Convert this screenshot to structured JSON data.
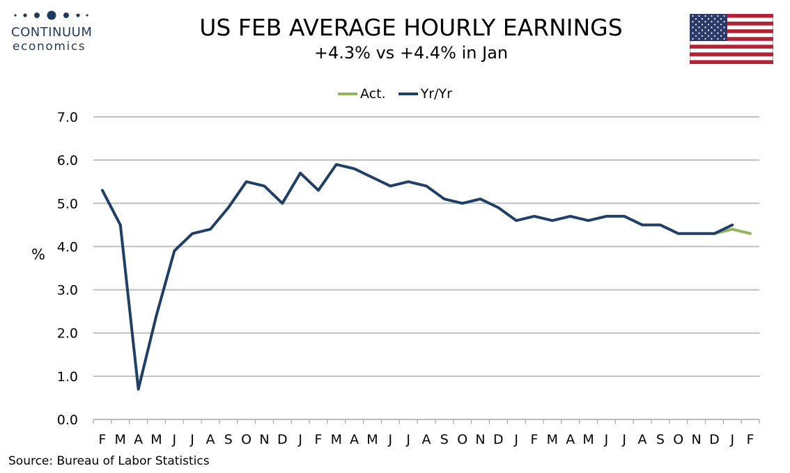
{
  "header": {
    "logo_name": "CONTINUUM",
    "logo_sub": "economics",
    "title": "US FEB AVERAGE HOURLY EARNINGS",
    "subtitle": "+4.3% vs +4.4% in Jan"
  },
  "flag_icon": "us-flag-icon",
  "source": "Source: Bureau of Labor Statistics",
  "colors": {
    "actual": "#92b55a",
    "yoy": "#1f3f66",
    "grid": "#bfbfbf",
    "logo": "#1f3a5f"
  },
  "chart_data": {
    "type": "line",
    "ylabel": "%",
    "ylim": [
      0,
      7
    ],
    "yticks": [
      "0.0",
      "1.0",
      "2.0",
      "3.0",
      "4.0",
      "5.0",
      "6.0",
      "7.0"
    ],
    "grid": true,
    "legend_position": "top-center",
    "categories": [
      "F",
      "M",
      "A",
      "M",
      "J",
      "J",
      "A",
      "S",
      "O",
      "N",
      "D",
      "J",
      "F",
      "M",
      "A",
      "M",
      "J",
      "J",
      "A",
      "S",
      "O",
      "N",
      "D",
      "J",
      "F",
      "M",
      "A",
      "M",
      "J",
      "J",
      "A",
      "S",
      "O",
      "N",
      "D",
      "J",
      "F"
    ],
    "series": [
      {
        "name": "Act.",
        "color": "#92b55a",
        "values": [
          null,
          null,
          null,
          null,
          null,
          null,
          null,
          null,
          null,
          null,
          null,
          null,
          null,
          null,
          null,
          null,
          null,
          null,
          null,
          null,
          null,
          null,
          null,
          null,
          null,
          null,
          null,
          null,
          null,
          null,
          null,
          null,
          null,
          null,
          4.3,
          4.4,
          4.3
        ]
      },
      {
        "name": "Yr/Yr",
        "color": "#1f3f66",
        "values": [
          5.3,
          4.5,
          0.7,
          2.4,
          3.9,
          4.3,
          4.4,
          4.9,
          5.5,
          5.4,
          5.0,
          5.7,
          5.3,
          5.9,
          5.8,
          5.6,
          5.4,
          5.5,
          5.4,
          5.1,
          5.0,
          5.1,
          4.9,
          4.6,
          4.7,
          4.6,
          4.7,
          4.6,
          4.7,
          4.7,
          4.5,
          4.5,
          4.3,
          4.3,
          4.3,
          4.5,
          null
        ]
      }
    ]
  }
}
